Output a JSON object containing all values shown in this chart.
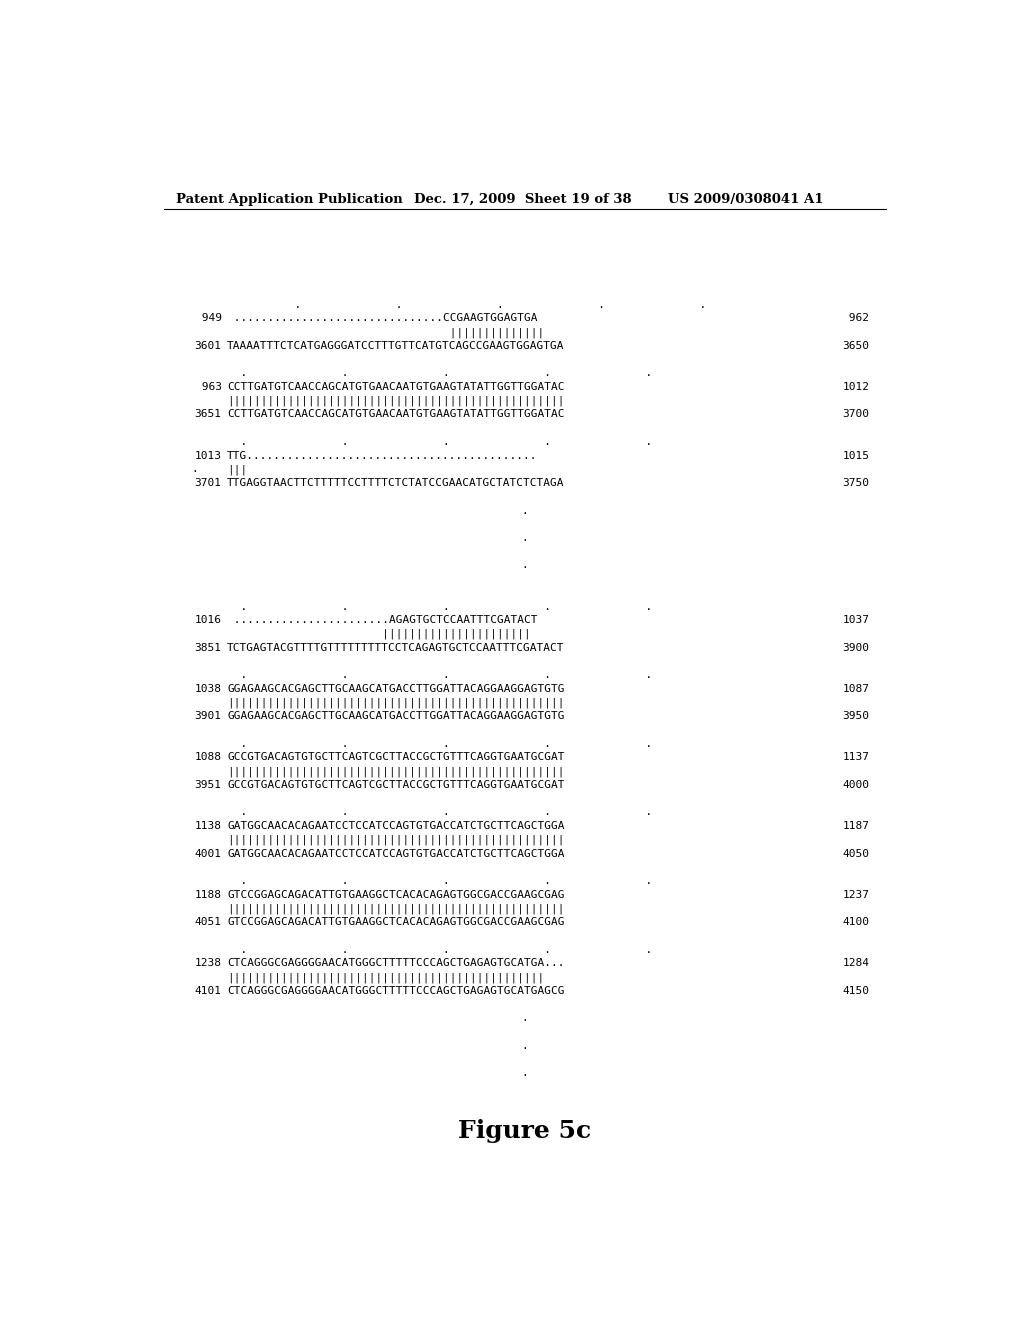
{
  "header_left": "Patent Application Publication",
  "header_mid": "Dec. 17, 2009  Sheet 19 of 38",
  "header_right": "US 2009/0308041 A1",
  "figure_label": "Figure 5c",
  "background_color": "#ffffff",
  "text_color": "#000000",
  "lines": [
    {
      "type": "blank"
    },
    {
      "type": "blank"
    },
    {
      "type": "blank"
    },
    {
      "type": "blank"
    },
    {
      "type": "dots_marker",
      "text": "          .              .              .              .              ."
    },
    {
      "type": "seq",
      "left": " 949",
      "mid": " ...............................CCGAAGTGGAGTGA",
      "right": " 962"
    },
    {
      "type": "match",
      "left": "",
      "mid": "                                 ||||||||||||||",
      "right": ""
    },
    {
      "type": "seq",
      "left": "3601",
      "mid": "TAAAATTTCTCATGAGGGATCCTTTGTTCATGTCAGCCGAAGTGGAGTGA",
      "right": "3650"
    },
    {
      "type": "blank"
    },
    {
      "type": "dots_marker",
      "text": "  .              .              .              .              ."
    },
    {
      "type": "seq",
      "left": " 963",
      "mid": "CCTTGATGTCAACCAGCATGTGAACAATGTGAAGTATATTGGTTGGATAC",
      "right": "1012"
    },
    {
      "type": "match",
      "left": "",
      "mid": "||||||||||||||||||||||||||||||||||||||||||||||||||",
      "right": ""
    },
    {
      "type": "seq",
      "left": "3651",
      "mid": "CCTTGATGTCAACCAGCATGTGAACAATGTGAAGTATATTGGTTGGATAC",
      "right": "3700"
    },
    {
      "type": "blank"
    },
    {
      "type": "dots_marker",
      "text": "  .              .              .              .              ."
    },
    {
      "type": "seq",
      "left": "1013",
      "mid": "TTG...........................................",
      "right": "1015"
    },
    {
      "type": "match",
      "left": ".",
      "mid": "|||",
      "right": ""
    },
    {
      "type": "seq",
      "left": "3701",
      "mid": "TTGAGGTAACTTCTTTTTCCTTTTCTCTATCCGAACATGCTATCTCTAGA",
      "right": "3750"
    },
    {
      "type": "blank"
    },
    {
      "type": "dot_center"
    },
    {
      "type": "blank"
    },
    {
      "type": "dot_center"
    },
    {
      "type": "blank"
    },
    {
      "type": "dot_center"
    },
    {
      "type": "blank"
    },
    {
      "type": "blank"
    },
    {
      "type": "dots_marker",
      "text": "  .              .              .              .              ."
    },
    {
      "type": "seq",
      "left": "1016",
      "mid": " .......................AGAGTGCTCCAATTTCGATACT",
      "right": "1037"
    },
    {
      "type": "match",
      "left": "",
      "mid": "                       ||||||||||||||||||||||",
      "right": ""
    },
    {
      "type": "seq",
      "left": "3851",
      "mid": "TCTGAGTACGTTTTGTTTTTTTTTCCTCAGAGTGCTCCAATTTCGATACT",
      "right": "3900"
    },
    {
      "type": "blank"
    },
    {
      "type": "dots_marker",
      "text": "  .              .              .              .              ."
    },
    {
      "type": "seq",
      "left": "1038",
      "mid": "GGAGAAGCACGAGCTTGCAAGCATGACCTTGGATTACAGGAAGGAGTGTG",
      "right": "1087"
    },
    {
      "type": "match",
      "left": "",
      "mid": "||||||||||||||||||||||||||||||||||||||||||||||||||",
      "right": ""
    },
    {
      "type": "seq",
      "left": "3901",
      "mid": "GGAGAAGCACGAGCTTGCAAGCATGACCTTGGATTACAGGAAGGAGTGTG",
      "right": "3950"
    },
    {
      "type": "blank"
    },
    {
      "type": "dots_marker",
      "text": "  .              .              .              .              ."
    },
    {
      "type": "seq",
      "left": "1088",
      "mid": "GCCGTGACAGTGTGCTTCAGTCGCTTACCGCTGTTTCAGGTGAATGCGAT",
      "right": "1137"
    },
    {
      "type": "match",
      "left": "",
      "mid": "||||||||||||||||||||||||||||||||||||||||||||||||||",
      "right": ""
    },
    {
      "type": "seq",
      "left": "3951",
      "mid": "GCCGTGACAGTGTGCTTCAGTCGCTTACCGCTGTTTCAGGTGAATGCGAT",
      "right": "4000"
    },
    {
      "type": "blank"
    },
    {
      "type": "dots_marker",
      "text": "  .              .              .              .              ."
    },
    {
      "type": "seq",
      "left": "1138",
      "mid": "GATGGCAACACAGAATCCTCCATCCAGTGTGACCATCTGCTTCAGCTGGA",
      "right": "1187"
    },
    {
      "type": "match",
      "left": "",
      "mid": "||||||||||||||||||||||||||||||||||||||||||||||||||",
      "right": ""
    },
    {
      "type": "seq",
      "left": "4001",
      "mid": "GATGGCAACACAGAATCCTCCATCCAGTGTGACCATCTGCTTCAGCTGGA",
      "right": "4050"
    },
    {
      "type": "blank"
    },
    {
      "type": "dots_marker",
      "text": "  .              .              .              .              ."
    },
    {
      "type": "seq",
      "left": "1188",
      "mid": "GTCCGGAGCAGACATTGTGAAGGCTCACACAGAGTGGCGACCGAAGCGAG",
      "right": "1237"
    },
    {
      "type": "match",
      "left": "",
      "mid": "||||||||||||||||||||||||||||||||||||||||||||||||||",
      "right": ""
    },
    {
      "type": "seq",
      "left": "4051",
      "mid": "GTCCGGAGCAGACATTGTGAAGGCTCACACAGAGTGGCGACCGAAGCGAG",
      "right": "4100"
    },
    {
      "type": "blank"
    },
    {
      "type": "dots_marker",
      "text": "  .              .              .              .              ."
    },
    {
      "type": "seq",
      "left": "1238",
      "mid": "CTCAGGGCGAGGGGAACATGGGCTTTTTCCCAGCTGAGAGTGCATGA...",
      "right": "1284"
    },
    {
      "type": "match",
      "left": "",
      "mid": "|||||||||||||||||||||||||||||||||||||||||||||||",
      "right": ""
    },
    {
      "type": "seq",
      "left": "4101",
      "mid": "CTCAGGGCGAGGGGAACATGGGCTTTTTCCCAGCTGAGAGTGCATGAGCG",
      "right": "4150"
    },
    {
      "type": "blank"
    },
    {
      "type": "dot_center"
    },
    {
      "type": "blank"
    },
    {
      "type": "dot_center"
    },
    {
      "type": "blank"
    },
    {
      "type": "dot_center"
    }
  ]
}
